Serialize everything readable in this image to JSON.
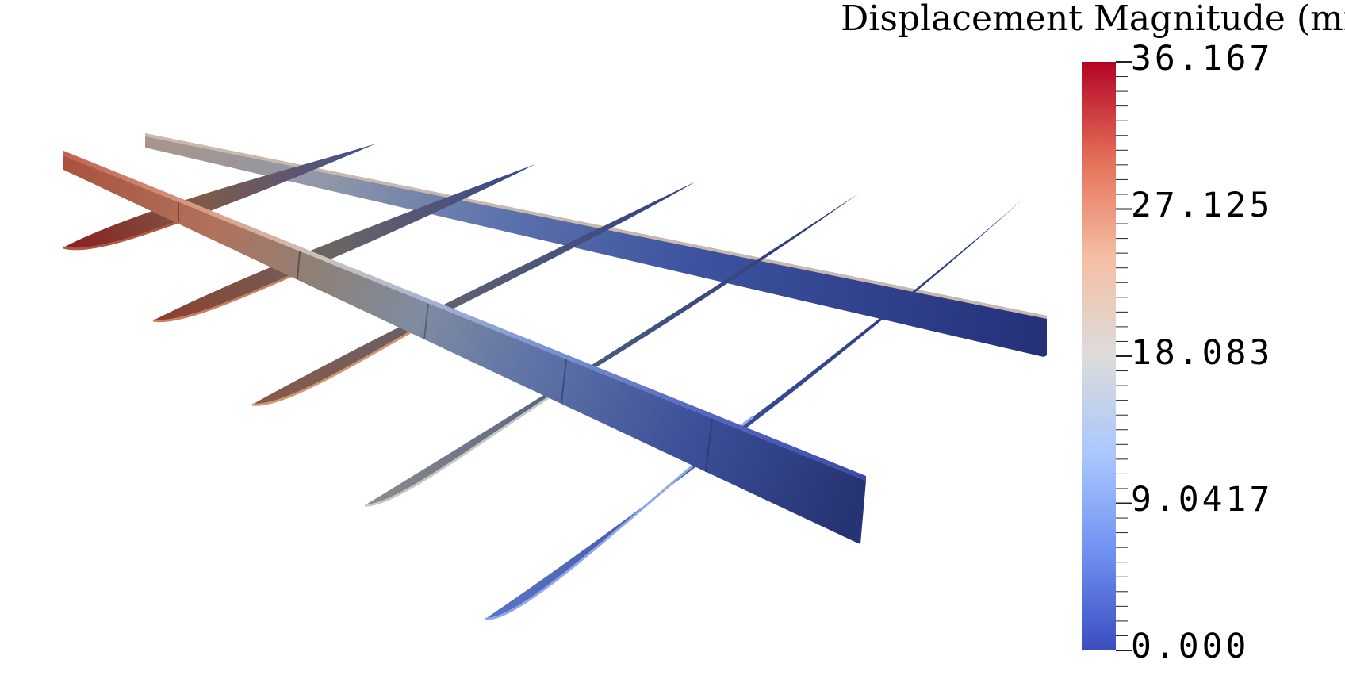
{
  "legend": {
    "title": "Displacement Magnitude (mm)",
    "tick_labels": [
      "36.167",
      "27.125",
      "18.083",
      "9.0417",
      "0.000"
    ],
    "colormap": [
      "#3b4cc0",
      "#7396f5",
      "#b0cbfc",
      "#dddcdc",
      "#f5c2aa",
      "#e8795f",
      "#b40426"
    ]
  }
}
